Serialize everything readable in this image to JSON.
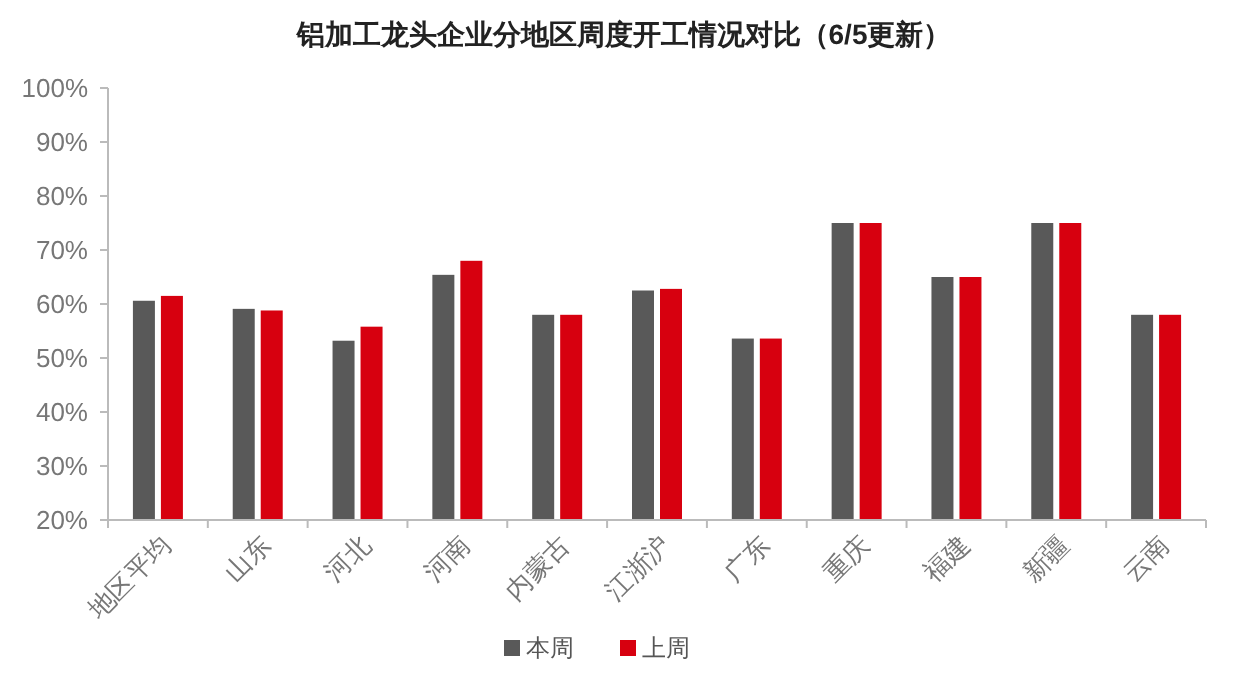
{
  "chart_data": {
    "type": "bar",
    "title": "铝加工龙头企业分地区周度开工情况对比（6/5更新）",
    "categories": [
      "地区平均",
      "山东",
      "河北",
      "河南",
      "内蒙古",
      "江浙沪",
      "广东",
      "重庆",
      "福建",
      "新疆",
      "云南"
    ],
    "series": [
      {
        "name": "本周",
        "color": "#595959",
        "values": [
          60.6,
          59.1,
          53.2,
          65.4,
          58,
          62.5,
          53.6,
          75,
          65,
          75,
          58
        ]
      },
      {
        "name": "上周",
        "color": "#d7000f",
        "values": [
          61.5,
          58.8,
          55.8,
          68,
          58,
          62.8,
          53.6,
          75,
          65,
          75,
          58
        ]
      }
    ],
    "ylim": [
      20,
      100
    ],
    "yticks": [
      {
        "value": 20,
        "label": "20%"
      },
      {
        "value": 30,
        "label": "30%"
      },
      {
        "value": 40,
        "label": "40%"
      },
      {
        "value": 50,
        "label": "50%"
      },
      {
        "value": 60,
        "label": "60%"
      },
      {
        "value": 70,
        "label": "70%"
      },
      {
        "value": 80,
        "label": "80%"
      },
      {
        "value": 90,
        "label": "90%"
      },
      {
        "value": 100,
        "label": "100%"
      }
    ],
    "grid": false,
    "legend": "bottom"
  }
}
